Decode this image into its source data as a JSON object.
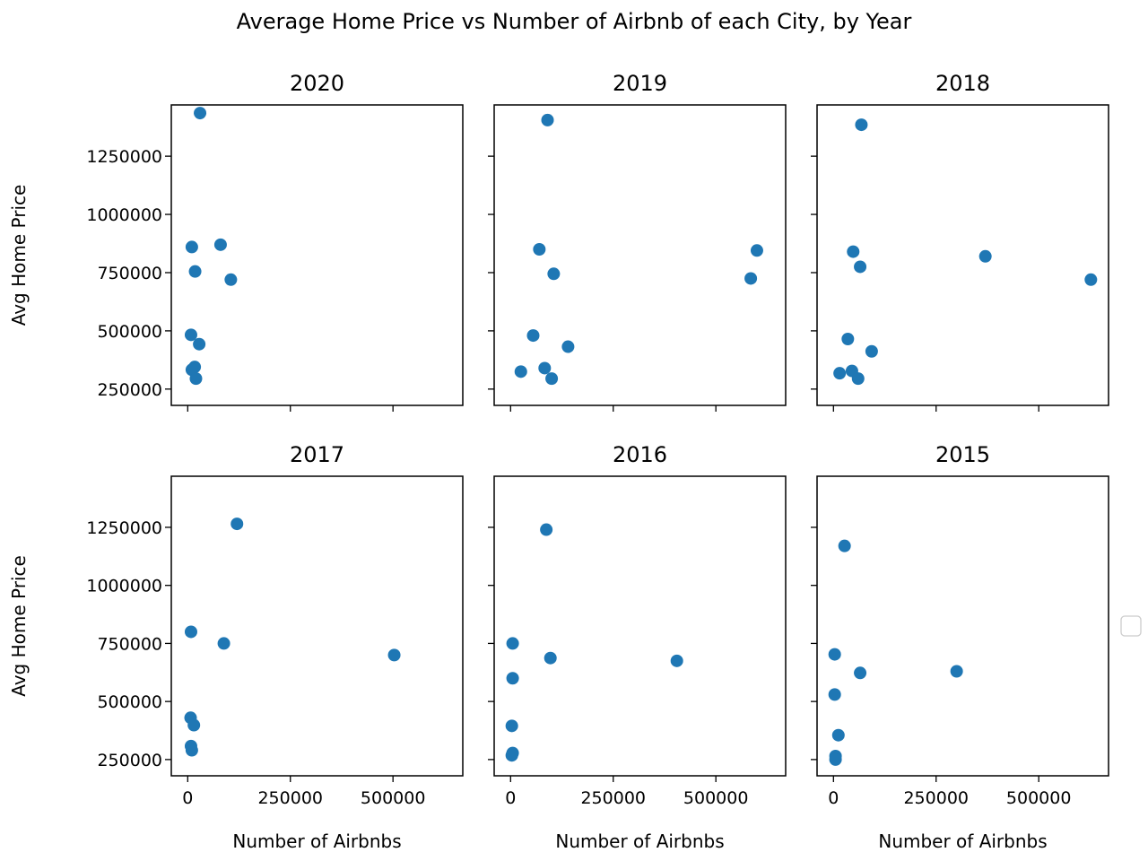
{
  "figure": {
    "suptitle": "Average Home Price vs Number of Airbnb of each City, by Year",
    "legend_visible": true,
    "accent_color": "#1f77b4"
  },
  "chart_data": [
    {
      "type": "scatter",
      "title": "2020",
      "xlabel": "",
      "ylabel": "Avg Home Price",
      "xlim": [
        -40000,
        670000
      ],
      "ylim": [
        180000,
        1470000
      ],
      "xticks": [],
      "yticks": [
        "250000",
        "500000",
        "750000",
        "1000000",
        "1250000"
      ],
      "points": [
        {
          "x": 30000,
          "y": 1435000
        },
        {
          "x": 10000,
          "y": 860000
        },
        {
          "x": 80000,
          "y": 870000
        },
        {
          "x": 18000,
          "y": 755000
        },
        {
          "x": 105000,
          "y": 720000
        },
        {
          "x": 8000,
          "y": 483000
        },
        {
          "x": 28000,
          "y": 443000
        },
        {
          "x": 17000,
          "y": 345000
        },
        {
          "x": 10000,
          "y": 333000
        },
        {
          "x": 20000,
          "y": 295000
        }
      ]
    },
    {
      "type": "scatter",
      "title": "2019",
      "xlabel": "",
      "ylabel": "",
      "xlim": [
        -40000,
        670000
      ],
      "ylim": [
        180000,
        1470000
      ],
      "xticks": [],
      "yticks": [],
      "points": [
        {
          "x": 90000,
          "y": 1405000
        },
        {
          "x": 70000,
          "y": 850000
        },
        {
          "x": 600000,
          "y": 845000
        },
        {
          "x": 105000,
          "y": 745000
        },
        {
          "x": 585000,
          "y": 725000
        },
        {
          "x": 55000,
          "y": 480000
        },
        {
          "x": 140000,
          "y": 432000
        },
        {
          "x": 25000,
          "y": 325000
        },
        {
          "x": 83000,
          "y": 340000
        },
        {
          "x": 100000,
          "y": 295000
        }
      ]
    },
    {
      "type": "scatter",
      "title": "2018",
      "xlabel": "",
      "ylabel": "",
      "xlim": [
        -40000,
        670000
      ],
      "ylim": [
        180000,
        1470000
      ],
      "xticks": [],
      "yticks": [],
      "points": [
        {
          "x": 68000,
          "y": 1385000
        },
        {
          "x": 48000,
          "y": 840000
        },
        {
          "x": 65000,
          "y": 775000
        },
        {
          "x": 370000,
          "y": 820000
        },
        {
          "x": 627000,
          "y": 720000
        },
        {
          "x": 35000,
          "y": 465000
        },
        {
          "x": 93000,
          "y": 412000
        },
        {
          "x": 15000,
          "y": 318000
        },
        {
          "x": 45000,
          "y": 328000
        },
        {
          "x": 60000,
          "y": 295000
        }
      ]
    },
    {
      "type": "scatter",
      "title": "2017",
      "xlabel": "Number of Airbnbs",
      "ylabel": "Avg Home Price",
      "xlim": [
        -40000,
        670000
      ],
      "ylim": [
        180000,
        1470000
      ],
      "xticks": [
        "0",
        "250000",
        "500000"
      ],
      "yticks": [
        "250000",
        "500000",
        "750000",
        "1000000",
        "1250000"
      ],
      "points": [
        {
          "x": 120000,
          "y": 1265000
        },
        {
          "x": 8000,
          "y": 800000
        },
        {
          "x": 88000,
          "y": 750000
        },
        {
          "x": 503000,
          "y": 700000
        },
        {
          "x": 7000,
          "y": 430000
        },
        {
          "x": 15000,
          "y": 398000
        },
        {
          "x": 8000,
          "y": 308000
        },
        {
          "x": 10000,
          "y": 290000
        }
      ]
    },
    {
      "type": "scatter",
      "title": "2016",
      "xlabel": "Number of Airbnbs",
      "ylabel": "",
      "xlim": [
        -40000,
        670000
      ],
      "ylim": [
        180000,
        1470000
      ],
      "xticks": [
        "0",
        "250000",
        "500000"
      ],
      "yticks": [],
      "points": [
        {
          "x": 87000,
          "y": 1240000
        },
        {
          "x": 5000,
          "y": 750000
        },
        {
          "x": 97000,
          "y": 687000
        },
        {
          "x": 405000,
          "y": 675000
        },
        {
          "x": 5000,
          "y": 600000
        },
        {
          "x": 3000,
          "y": 395000
        },
        {
          "x": 5000,
          "y": 278000
        },
        {
          "x": 3000,
          "y": 268000
        }
      ]
    },
    {
      "type": "scatter",
      "title": "2015",
      "xlabel": "Number of Airbnbs",
      "ylabel": "",
      "xlim": [
        -40000,
        670000
      ],
      "ylim": [
        180000,
        1470000
      ],
      "xticks": [
        "0",
        "250000",
        "500000"
      ],
      "yticks": [],
      "points": [
        {
          "x": 27000,
          "y": 1170000
        },
        {
          "x": 3000,
          "y": 703000
        },
        {
          "x": 65000,
          "y": 623000
        },
        {
          "x": 300000,
          "y": 630000
        },
        {
          "x": 3000,
          "y": 530000
        },
        {
          "x": 12000,
          "y": 355000
        },
        {
          "x": 5000,
          "y": 265000
        },
        {
          "x": 5000,
          "y": 250000
        }
      ]
    }
  ]
}
